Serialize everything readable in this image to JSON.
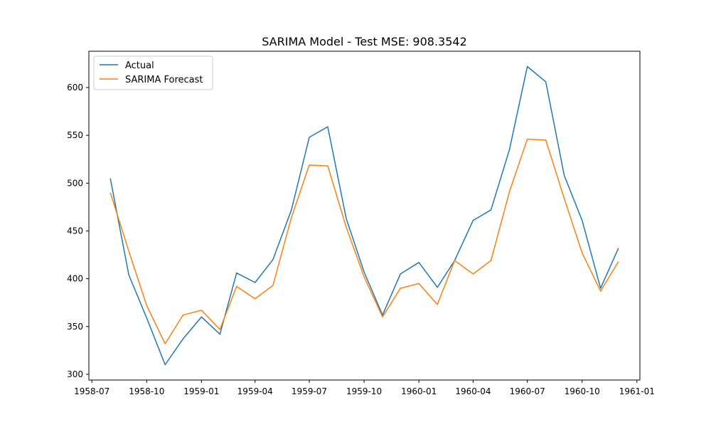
{
  "chart_data": {
    "type": "line",
    "title": "SARIMA Model - Test MSE: 908.3542",
    "xlabel": "",
    "ylabel": "",
    "x": [
      "1958-08",
      "1958-09",
      "1958-10",
      "1958-11",
      "1958-12",
      "1959-01",
      "1959-02",
      "1959-03",
      "1959-04",
      "1959-05",
      "1959-06",
      "1959-07",
      "1959-08",
      "1959-09",
      "1959-10",
      "1959-11",
      "1959-12",
      "1960-01",
      "1960-02",
      "1960-03",
      "1960-04",
      "1960-05",
      "1960-06",
      "1960-07",
      "1960-08",
      "1960-09",
      "1960-10",
      "1960-11",
      "1960-12"
    ],
    "series": [
      {
        "name": "Actual",
        "color": "#1f77b4",
        "values": [
          505,
          404,
          359,
          310,
          337,
          360,
          342,
          406,
          396,
          420,
          472,
          548,
          559,
          463,
          407,
          362,
          405,
          417,
          391,
          419,
          461,
          472,
          535,
          622,
          606,
          508,
          461,
          390,
          432
        ]
      },
      {
        "name": "SARIMA Forecast",
        "color": "#ff7f0e",
        "values": [
          490,
          429,
          372,
          332,
          362,
          367,
          347,
          392,
          379,
          393,
          464,
          519,
          518,
          454,
          402,
          360,
          390,
          395,
          373,
          419,
          405,
          419,
          491,
          546,
          545,
          484,
          427,
          387,
          418
        ]
      }
    ],
    "x_ticks": [
      "1958-07",
      "1958-10",
      "1959-01",
      "1959-04",
      "1959-07",
      "1959-10",
      "1960-01",
      "1960-04",
      "1960-07",
      "1960-10",
      "1961-01"
    ],
    "y_ticks": [
      300,
      350,
      400,
      450,
      500,
      550,
      600
    ],
    "ylim": [
      294,
      638
    ],
    "xlim": [
      "1958-06-26",
      "1961-01-06"
    ],
    "grid": false,
    "legend_position": "upper-left"
  }
}
